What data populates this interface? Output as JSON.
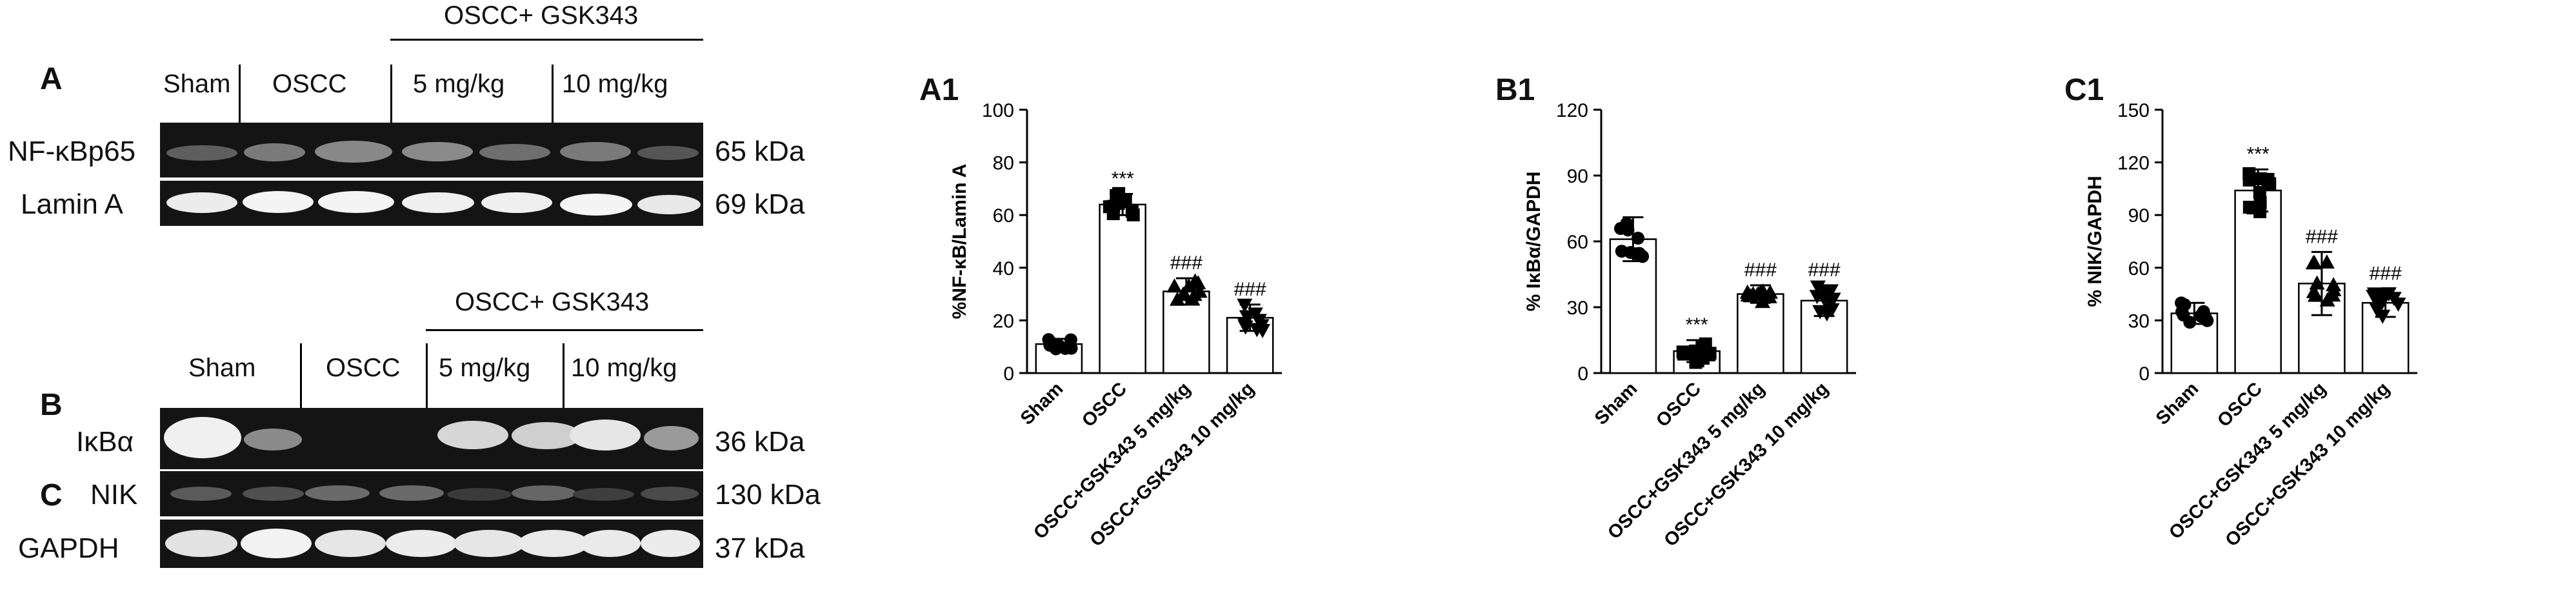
{
  "blots": {
    "panel_a": {
      "letter": "A",
      "group_header": "OSCC+ GSK343",
      "lanes": [
        "Sham",
        "OSCC",
        "5 mg/kg",
        "10 mg/kg"
      ],
      "rows": [
        {
          "label": "NF-κBp65",
          "kda": "65 kDa"
        },
        {
          "label": "Lamin A",
          "kda": "69 kDa"
        }
      ]
    },
    "panel_bc": {
      "letter_b": "B",
      "letter_c": "C",
      "group_header": "OSCC+ GSK343",
      "lanes": [
        "Sham",
        "OSCC",
        "5 mg/kg",
        "10 mg/kg"
      ],
      "rows": [
        {
          "label": "IκBα",
          "kda": "36 kDa"
        },
        {
          "label": "NIK",
          "kda": "130 kDa"
        },
        {
          "label": "GAPDH",
          "kda": "37 kDa"
        }
      ]
    }
  },
  "chart_data": [
    {
      "type": "bar",
      "panel": "A1",
      "ylabel": "%NF-κB/Lamin A",
      "ylim": [
        0,
        100
      ],
      "yticks": [
        0,
        20,
        40,
        60,
        80,
        100
      ],
      "categories": [
        "Sham",
        "OSCC",
        "OSCC+GSK343 5 mg/kg",
        "OSCC+GSK343 10 mg/kg"
      ],
      "values": [
        11,
        64,
        31,
        21
      ],
      "errors": [
        2,
        4,
        5,
        5
      ],
      "annotations": [
        "",
        "***",
        "###",
        "###"
      ],
      "markers": [
        "circle",
        "square",
        "triangle",
        "triangle-down"
      ]
    },
    {
      "type": "bar",
      "panel": "B1",
      "ylabel": "% IκBα/GAPDH",
      "ylim": [
        0,
        120
      ],
      "yticks": [
        0,
        30,
        60,
        90,
        120
      ],
      "categories": [
        "Sham",
        "OSCC",
        "OSCC+GSK343 5 mg/kg",
        "OSCC+GSK343 10 mg/kg"
      ],
      "values": [
        61,
        10,
        36,
        33
      ],
      "errors": [
        10,
        5,
        4,
        7
      ],
      "annotations": [
        "",
        "***",
        "###",
        "###"
      ],
      "markers": [
        "circle",
        "square",
        "triangle",
        "triangle-down"
      ]
    },
    {
      "type": "bar",
      "panel": "C1",
      "ylabel": "% NIK/GAPDH",
      "ylim": [
        0,
        150
      ],
      "yticks": [
        0,
        30,
        60,
        90,
        120,
        150
      ],
      "categories": [
        "Sham",
        "OSCC",
        "OSCC+GSK343 5 mg/kg",
        "OSCC+GSK343 10 mg/kg"
      ],
      "values": [
        34,
        104,
        51,
        40
      ],
      "errors": [
        6,
        12,
        18,
        8
      ],
      "annotations": [
        "",
        "***",
        "###",
        "###"
      ],
      "markers": [
        "circle",
        "square",
        "triangle",
        "triangle-down"
      ]
    }
  ]
}
